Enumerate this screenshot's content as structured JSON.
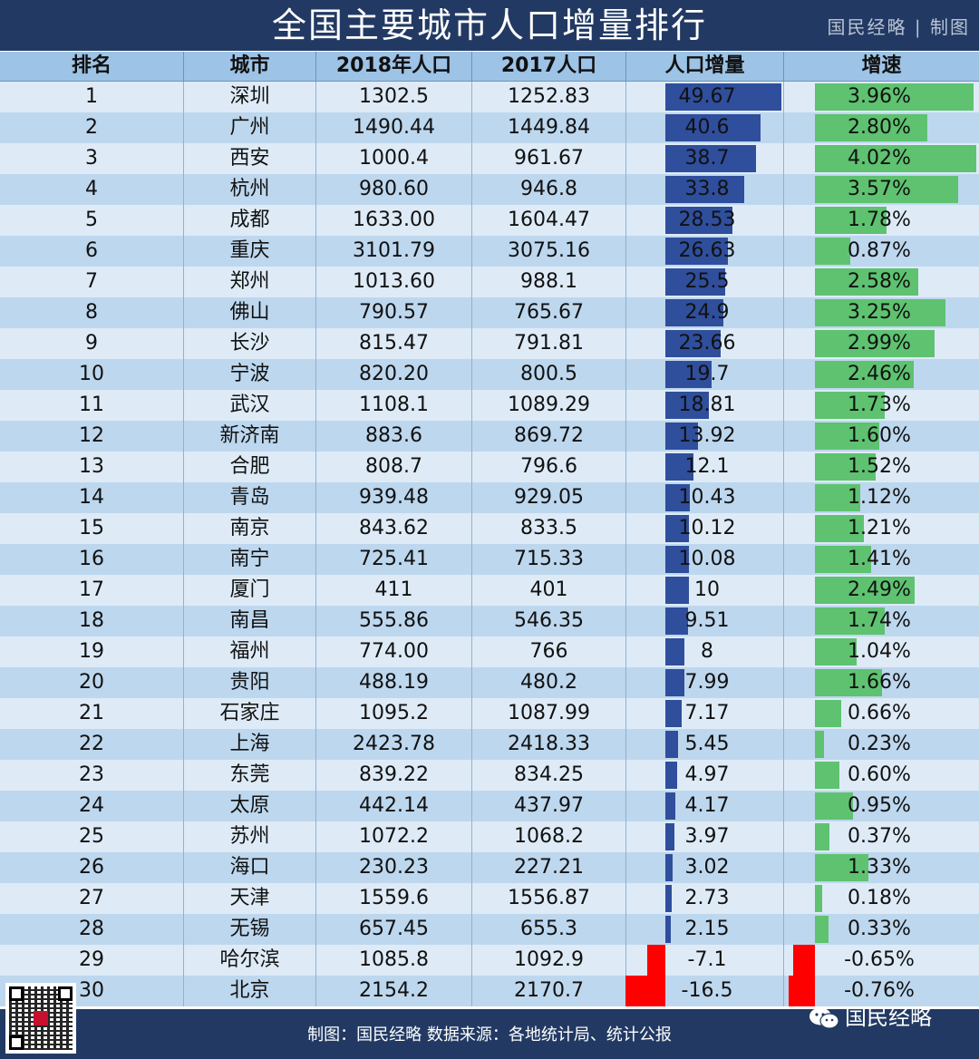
{
  "title": "全国主要城市人口增量排行",
  "brand": "国民经略 | 制图",
  "headers": {
    "rank": "排名",
    "city": "城市",
    "pop2018": "2018年人口",
    "pop2017": "2017人口",
    "increase": "人口增量",
    "growth": "增速"
  },
  "rows": [
    {
      "rank": "1",
      "city": "深圳",
      "pop2018": "1302.5",
      "pop2017": "1252.83",
      "increase": "49.67",
      "growth": "3.96%"
    },
    {
      "rank": "2",
      "city": "广州",
      "pop2018": "1490.44",
      "pop2017": "1449.84",
      "increase": "40.6",
      "growth": "2.80%"
    },
    {
      "rank": "3",
      "city": "西安",
      "pop2018": "1000.4",
      "pop2017": "961.67",
      "increase": "38.7",
      "growth": "4.02%"
    },
    {
      "rank": "4",
      "city": "杭州",
      "pop2018": "980.60",
      "pop2017": "946.8",
      "increase": "33.8",
      "growth": "3.57%"
    },
    {
      "rank": "5",
      "city": "成都",
      "pop2018": "1633.00",
      "pop2017": "1604.47",
      "increase": "28.53",
      "growth": "1.78%"
    },
    {
      "rank": "6",
      "city": "重庆",
      "pop2018": "3101.79",
      "pop2017": "3075.16",
      "increase": "26.63",
      "growth": "0.87%"
    },
    {
      "rank": "7",
      "city": "郑州",
      "pop2018": "1013.60",
      "pop2017": "988.1",
      "increase": "25.5",
      "growth": "2.58%"
    },
    {
      "rank": "8",
      "city": "佛山",
      "pop2018": "790.57",
      "pop2017": "765.67",
      "increase": "24.9",
      "growth": "3.25%"
    },
    {
      "rank": "9",
      "city": "长沙",
      "pop2018": "815.47",
      "pop2017": "791.81",
      "increase": "23.66",
      "growth": "2.99%"
    },
    {
      "rank": "10",
      "city": "宁波",
      "pop2018": "820.20",
      "pop2017": "800.5",
      "increase": "19.7",
      "growth": "2.46%"
    },
    {
      "rank": "11",
      "city": "武汉",
      "pop2018": "1108.1",
      "pop2017": "1089.29",
      "increase": "18.81",
      "growth": "1.73%"
    },
    {
      "rank": "12",
      "city": "新济南",
      "pop2018": "883.6",
      "pop2017": "869.72",
      "increase": "13.92",
      "growth": "1.60%"
    },
    {
      "rank": "13",
      "city": "合肥",
      "pop2018": "808.7",
      "pop2017": "796.6",
      "increase": "12.1",
      "growth": "1.52%"
    },
    {
      "rank": "14",
      "city": "青岛",
      "pop2018": "939.48",
      "pop2017": "929.05",
      "increase": "10.43",
      "growth": "1.12%"
    },
    {
      "rank": "15",
      "city": "南京",
      "pop2018": "843.62",
      "pop2017": "833.5",
      "increase": "10.12",
      "growth": "1.21%"
    },
    {
      "rank": "16",
      "city": "南宁",
      "pop2018": "725.41",
      "pop2017": "715.33",
      "increase": "10.08",
      "growth": "1.41%"
    },
    {
      "rank": "17",
      "city": "厦门",
      "pop2018": "411",
      "pop2017": "401",
      "increase": "10",
      "growth": "2.49%"
    },
    {
      "rank": "18",
      "city": "南昌",
      "pop2018": "555.86",
      "pop2017": "546.35",
      "increase": "9.51",
      "growth": "1.74%"
    },
    {
      "rank": "19",
      "city": "福州",
      "pop2018": "774.00",
      "pop2017": "766",
      "increase": "8",
      "growth": "1.04%"
    },
    {
      "rank": "20",
      "city": "贵阳",
      "pop2018": "488.19",
      "pop2017": "480.2",
      "increase": "7.99",
      "growth": "1.66%"
    },
    {
      "rank": "21",
      "city": "石家庄",
      "pop2018": "1095.2",
      "pop2017": "1087.99",
      "increase": "7.17",
      "growth": "0.66%"
    },
    {
      "rank": "22",
      "city": "上海",
      "pop2018": "2423.78",
      "pop2017": "2418.33",
      "increase": "5.45",
      "growth": "0.23%"
    },
    {
      "rank": "23",
      "city": "东莞",
      "pop2018": "839.22",
      "pop2017": "834.25",
      "increase": "4.97",
      "growth": "0.60%"
    },
    {
      "rank": "24",
      "city": "太原",
      "pop2018": "442.14",
      "pop2017": "437.97",
      "increase": "4.17",
      "growth": "0.95%"
    },
    {
      "rank": "25",
      "city": "苏州",
      "pop2018": "1072.2",
      "pop2017": "1068.2",
      "increase": "3.97",
      "growth": "0.37%"
    },
    {
      "rank": "26",
      "city": "海口",
      "pop2018": "230.23",
      "pop2017": "227.21",
      "increase": "3.02",
      "growth": "1.33%"
    },
    {
      "rank": "27",
      "city": "天津",
      "pop2018": "1559.6",
      "pop2017": "1556.87",
      "increase": "2.73",
      "growth": "0.18%"
    },
    {
      "rank": "28",
      "city": "无锡",
      "pop2018": "657.45",
      "pop2017": "655.3",
      "increase": "2.15",
      "growth": "0.33%"
    },
    {
      "rank": "29",
      "city": "哈尔滨",
      "pop2018": "1085.8",
      "pop2017": "1092.9",
      "increase": "-7.1",
      "growth": "-0.65%"
    },
    {
      "rank": "30",
      "city": "北京",
      "pop2018": "2154.2",
      "pop2017": "2170.7",
      "increase": "-16.5",
      "growth": "-0.76%"
    }
  ],
  "chart_data": {
    "type": "table",
    "title": "全国主要城市人口增量排行",
    "columns": [
      "排名",
      "城市",
      "2018年人口",
      "2017人口",
      "人口增量",
      "增速"
    ],
    "increase_values": [
      49.67,
      40.6,
      38.7,
      33.8,
      28.53,
      26.63,
      25.5,
      24.9,
      23.66,
      19.7,
      18.81,
      13.92,
      12.1,
      10.43,
      10.12,
      10.08,
      10,
      9.51,
      8,
      7.99,
      7.17,
      5.45,
      4.97,
      4.17,
      3.97,
      3.02,
      2.73,
      2.15,
      -7.1,
      -16.5
    ],
    "growth_values": [
      3.96,
      2.8,
      4.02,
      3.57,
      1.78,
      0.87,
      2.58,
      3.25,
      2.99,
      2.46,
      1.73,
      1.6,
      1.52,
      1.12,
      1.21,
      1.41,
      2.49,
      1.74,
      1.04,
      1.66,
      0.66,
      0.23,
      0.6,
      0.95,
      0.37,
      1.33,
      0.18,
      0.33,
      -0.65,
      -0.76
    ],
    "increase_max": 49.67,
    "growth_max": 4.02
  },
  "colors": {
    "increase_bar": "#2f4e9c",
    "growth_bar": "#5ec270",
    "negative_bar": "#ff0000"
  },
  "footer": "制图：国民经略 数据来源：各地统计局、统计公报",
  "wechat": "国民经略"
}
